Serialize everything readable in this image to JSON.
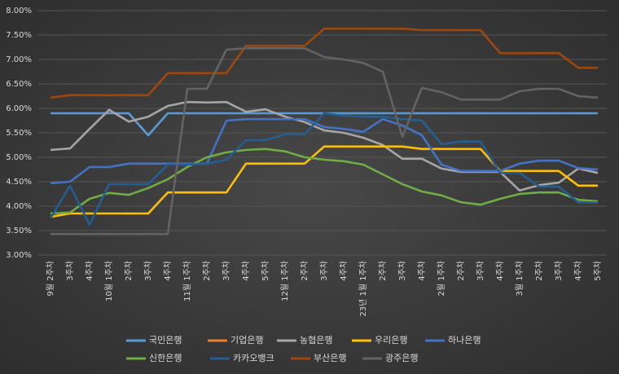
{
  "chart_data": {
    "type": "line",
    "categories": [
      "9월 2주차",
      "3주차",
      "4주차",
      "10월 1주차",
      "2주차",
      "3주차",
      "4주차",
      "11월 1주차",
      "2주차",
      "3주차",
      "4주차",
      "5주차",
      "12월 1주차",
      "2주차",
      "3주차",
      "4주차",
      "23년 1월 1주차",
      "2주차",
      "3주차",
      "4주차",
      "2월 1주차",
      "2주차",
      "3주차",
      "4주차",
      "3월 1주차",
      "2주차",
      "3주차",
      "4주차",
      "5주차"
    ],
    "ylim": [
      3,
      8
    ],
    "yticks": [
      {
        "value": 3,
        "label": "3.00%"
      },
      {
        "value": 3.5,
        "label": "3.50%"
      },
      {
        "value": 4,
        "label": "4.00%"
      },
      {
        "value": 4.5,
        "label": "4.50%"
      },
      {
        "value": 5,
        "label": "5.00%"
      },
      {
        "value": 5.5,
        "label": "5.50%"
      },
      {
        "value": 6,
        "label": "6.00%"
      },
      {
        "value": 6.5,
        "label": "6.50%"
      },
      {
        "value": 7,
        "label": "7.00%"
      },
      {
        "value": 7.5,
        "label": "7.50%"
      },
      {
        "value": 8,
        "label": "8.00%"
      }
    ],
    "grid": true,
    "series": [
      {
        "name": "국민은행",
        "color": "#5b9bd5",
        "values": [
          5.9,
          5.9,
          5.9,
          5.9,
          5.9,
          5.45,
          5.9,
          5.9,
          5.9,
          5.9,
          5.9,
          5.9,
          5.9,
          5.9,
          5.9,
          5.9,
          5.9,
          5.9,
          5.9,
          5.9,
          5.9,
          5.9,
          5.9,
          5.9,
          5.9,
          5.9,
          5.9,
          5.9,
          5.9
        ]
      },
      {
        "name": "기업은행",
        "color": "#ed7d31",
        "values": [
          null,
          null,
          null,
          null,
          null,
          null,
          null,
          null,
          null,
          null,
          null,
          null,
          null,
          null,
          null,
          null,
          null,
          null,
          null,
          null,
          null,
          null,
          null,
          null,
          null,
          null,
          null,
          null,
          null
        ]
      },
      {
        "name": "농협은행",
        "color": "#a5a5a5",
        "values": [
          5.15,
          5.18,
          5.58,
          5.97,
          5.73,
          5.83,
          6.05,
          6.13,
          6.12,
          6.13,
          5.93,
          5.98,
          5.83,
          5.72,
          5.55,
          5.5,
          5.4,
          5.25,
          4.97,
          4.97,
          4.77,
          4.7,
          4.7,
          4.7,
          4.32,
          4.43,
          4.48,
          4.77,
          4.68
        ]
      },
      {
        "name": "우리은행",
        "color": "#ffc000",
        "values": [
          3.78,
          3.85,
          3.85,
          3.85,
          3.85,
          3.85,
          4.28,
          4.28,
          4.28,
          4.28,
          4.87,
          4.87,
          4.87,
          4.87,
          5.22,
          5.22,
          5.22,
          5.22,
          5.22,
          5.17,
          5.17,
          5.17,
          5.17,
          4.72,
          4.72,
          4.72,
          4.72,
          4.42,
          4.42
        ]
      },
      {
        "name": "하나은행",
        "color": "#4472c4",
        "values": [
          4.47,
          4.5,
          4.8,
          4.8,
          4.87,
          4.87,
          4.87,
          4.87,
          4.87,
          5.75,
          5.78,
          5.78,
          5.78,
          5.78,
          5.62,
          5.58,
          5.52,
          5.78,
          5.65,
          5.45,
          4.85,
          4.72,
          4.72,
          4.72,
          4.87,
          4.93,
          4.93,
          4.78,
          4.75
        ]
      },
      {
        "name": "신한은행",
        "color": "#70ad47",
        "values": [
          3.85,
          3.87,
          4.15,
          4.27,
          4.23,
          4.37,
          4.55,
          4.8,
          5.0,
          5.1,
          5.15,
          5.17,
          5.12,
          5.0,
          4.95,
          4.92,
          4.85,
          4.65,
          4.45,
          4.3,
          4.22,
          4.08,
          4.03,
          4.15,
          4.25,
          4.28,
          4.28,
          4.13,
          4.1
        ]
      },
      {
        "name": "카카오뱅크",
        "color": "#255e91",
        "values": [
          3.75,
          4.42,
          3.62,
          4.45,
          4.45,
          4.45,
          4.85,
          4.85,
          4.87,
          4.95,
          5.35,
          5.35,
          5.47,
          5.47,
          5.9,
          5.85,
          5.83,
          5.83,
          5.78,
          5.75,
          5.27,
          5.32,
          5.32,
          4.68,
          4.68,
          4.4,
          4.4,
          4.08,
          4.07
        ]
      },
      {
        "name": "부산은행",
        "color": "#9e480e",
        "values": [
          6.22,
          6.27,
          6.27,
          6.27,
          6.27,
          6.27,
          6.72,
          6.72,
          6.72,
          6.72,
          7.28,
          7.28,
          7.28,
          7.28,
          7.63,
          7.63,
          7.63,
          7.63,
          7.63,
          7.6,
          7.6,
          7.6,
          7.6,
          7.13,
          7.13,
          7.13,
          7.13,
          6.83,
          6.83
        ]
      },
      {
        "name": "광주은행",
        "color": "#636363",
        "values": [
          3.43,
          3.43,
          3.43,
          3.43,
          3.43,
          3.43,
          3.43,
          6.4,
          6.4,
          7.2,
          7.23,
          7.23,
          7.23,
          7.23,
          7.05,
          7.0,
          6.93,
          6.75,
          5.42,
          6.42,
          6.33,
          6.18,
          6.18,
          6.18,
          6.35,
          6.4,
          6.4,
          6.25,
          6.22
        ]
      }
    ]
  }
}
